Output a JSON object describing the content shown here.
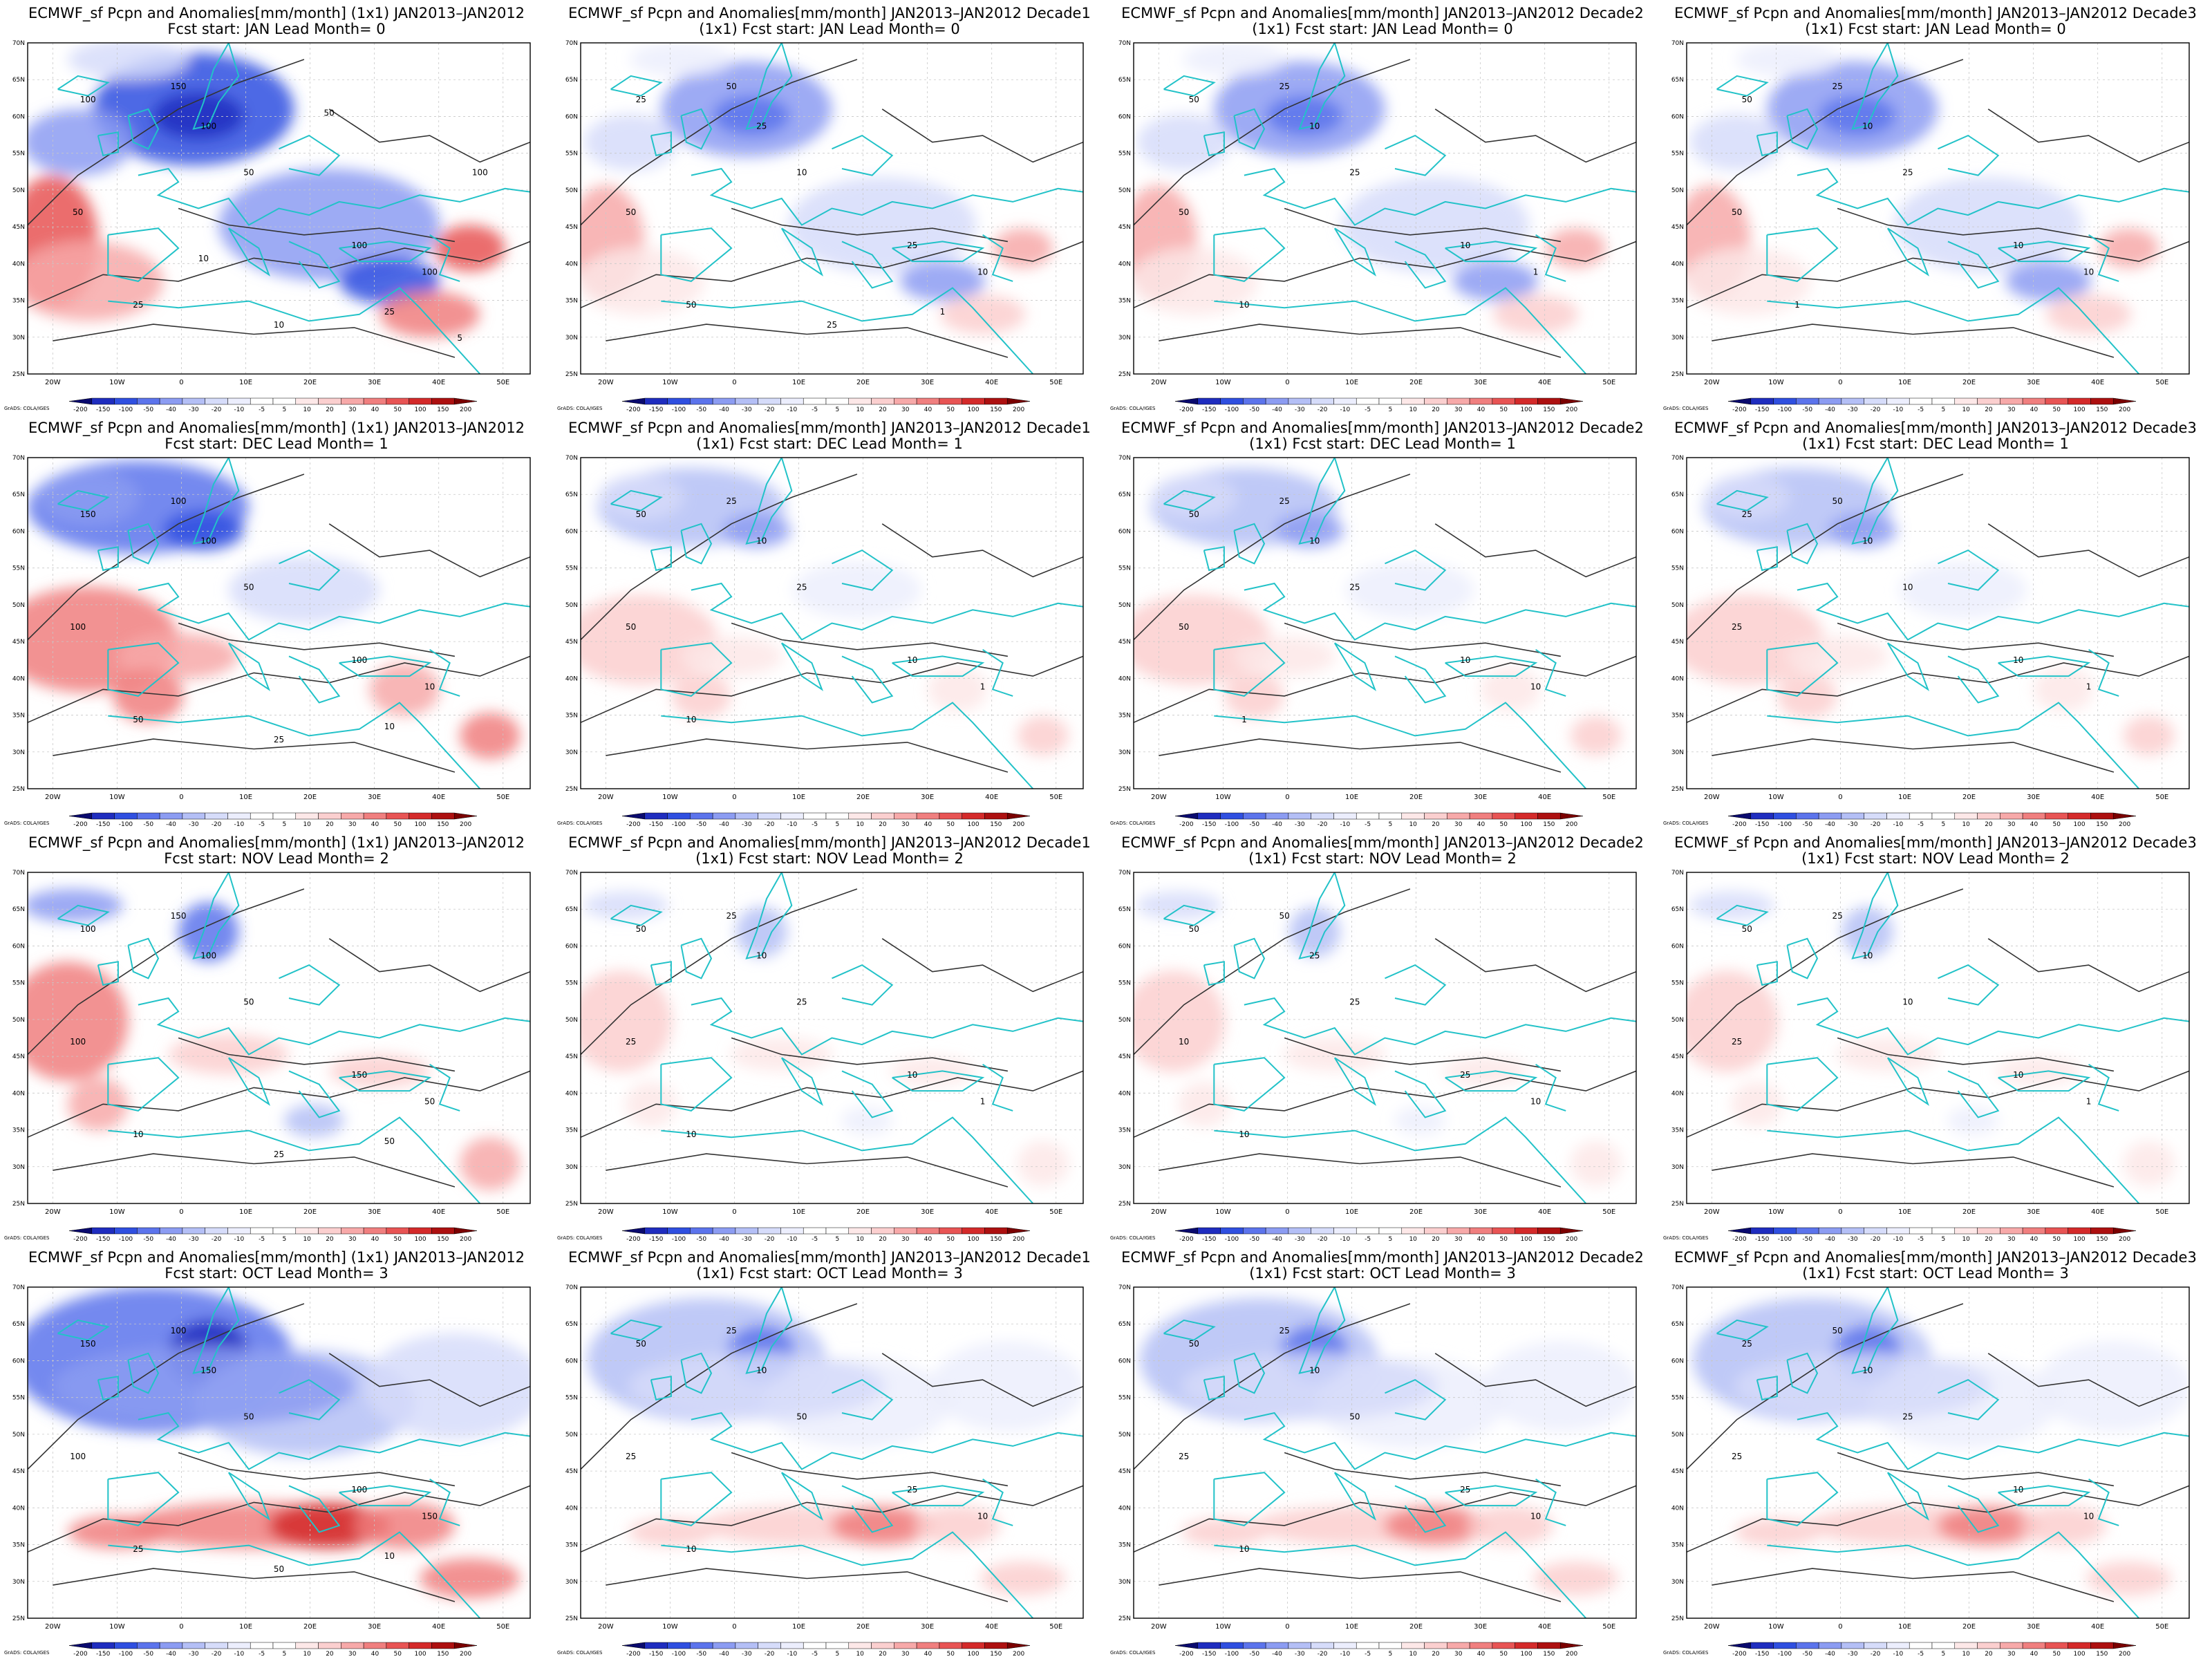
{
  "figure": {
    "colorbar_ticks": [
      "-200",
      "-150",
      "-100",
      "-50",
      "-40",
      "-30",
      "-20",
      "-10",
      "-5",
      "5",
      "10",
      "20",
      "30",
      "40",
      "50",
      "100",
      "150",
      "200"
    ],
    "colorbar_colors": [
      "#0a0a6e",
      "#1f2dbf",
      "#2f4fe0",
      "#5c74ec",
      "#8c9cf2",
      "#b4bff6",
      "#d6dcfa",
      "#eceefd",
      "#ffffff",
      "#ffffff",
      "#fde8e8",
      "#fbcfcf",
      "#f7a9a9",
      "#f07f7f",
      "#e85454",
      "#d42a2a",
      "#ad1010",
      "#7a0000"
    ],
    "lat_labels": [
      "70N",
      "65N",
      "60N",
      "55N",
      "50N",
      "45N",
      "40N",
      "35N",
      "30N",
      "25N"
    ],
    "lon_labels": [
      "20W",
      "10W",
      "0",
      "10E",
      "20E",
      "30E",
      "40E",
      "50E"
    ],
    "credit": "GrADS: COLA/IGES",
    "coast_color": "#22c2c8"
  },
  "panels": [
    {
      "title_line1": "ECMWF_sf Pcpn and Anomalies[mm/month] (1x1) JAN2013–JAN2012",
      "title_line2": "Fcst start: JAN  Lead Month= 0",
      "contour_labels": [
        "100",
        "150",
        "100",
        "50",
        "50",
        "100",
        "100",
        "25",
        "10",
        "25",
        "50",
        "100",
        "10",
        "5"
      ]
    },
    {
      "title_line1": "ECMWF_sf Pcpn and Anomalies[mm/month] JAN2013–JAN2012 Decade1",
      "title_line2": "(1x1) Fcst start: JAN  Lead Month= 0",
      "contour_labels": [
        "25",
        "50",
        "25",
        "50",
        "10",
        "25",
        "10",
        "50",
        "25",
        "1"
      ]
    },
    {
      "title_line1": "ECMWF_sf Pcpn and Anomalies[mm/month] JAN2013–JAN2012 Decade2",
      "title_line2": "(1x1) Fcst start: JAN  Lead Month= 0",
      "contour_labels": [
        "50",
        "25",
        "10",
        "50",
        "25",
        "10",
        "1",
        "10"
      ]
    },
    {
      "title_line1": "ECMWF_sf Pcpn and Anomalies[mm/month] JAN2013–JAN2012 Decade3",
      "title_line2": "(1x1) Fcst start: JAN  Lead Month= 0",
      "contour_labels": [
        "50",
        "25",
        "10",
        "50",
        "25",
        "10",
        "10",
        "1"
      ]
    },
    {
      "title_line1": "ECMWF_sf Pcpn and Anomalies[mm/month] (1x1) JAN2013–JAN2012",
      "title_line2": "Fcst start: DEC  Lead Month= 1",
      "contour_labels": [
        "150",
        "100",
        "100",
        "100",
        "50",
        "100",
        "10",
        "50",
        "25",
        "10"
      ]
    },
    {
      "title_line1": "ECMWF_sf Pcpn and Anomalies[mm/month] JAN2013–JAN2012 Decade1",
      "title_line2": "(1x1) Fcst start: DEC  Lead Month= 1",
      "contour_labels": [
        "50",
        "25",
        "10",
        "50",
        "25",
        "10",
        "1",
        "10"
      ]
    },
    {
      "title_line1": "ECMWF_sf Pcpn and Anomalies[mm/month] JAN2013–JAN2012 Decade2",
      "title_line2": "(1x1) Fcst start: DEC  Lead Month= 1",
      "contour_labels": [
        "50",
        "25",
        "10",
        "50",
        "25",
        "10",
        "10",
        "1"
      ]
    },
    {
      "title_line1": "ECMWF_sf Pcpn and Anomalies[mm/month] JAN2013–JAN2012 Decade3",
      "title_line2": "(1x1) Fcst start: DEC  Lead Month= 1",
      "contour_labels": [
        "25",
        "50",
        "10",
        "25",
        "10",
        "10",
        "1"
      ]
    },
    {
      "title_line1": "ECMWF_sf Pcpn and Anomalies[mm/month] (1x1) JAN2013–JAN2012",
      "title_line2": "Fcst start: NOV  Lead Month= 2",
      "contour_labels": [
        "100",
        "150",
        "100",
        "100",
        "50",
        "150",
        "50",
        "10",
        "25",
        "50"
      ]
    },
    {
      "title_line1": "ECMWF_sf Pcpn and Anomalies[mm/month] JAN2013–JAN2012 Decade1",
      "title_line2": "(1x1) Fcst start: NOV  Lead Month= 2",
      "contour_labels": [
        "50",
        "25",
        "10",
        "25",
        "25",
        "10",
        "1",
        "10"
      ]
    },
    {
      "title_line1": "ECMWF_sf Pcpn and Anomalies[mm/month] JAN2013–JAN2012 Decade2",
      "title_line2": "(1x1) Fcst start: NOV  Lead Month= 2",
      "contour_labels": [
        "50",
        "50",
        "25",
        "10",
        "25",
        "25",
        "10",
        "10"
      ]
    },
    {
      "title_line1": "ECMWF_sf Pcpn and Anomalies[mm/month] JAN2013–JAN2012 Decade3",
      "title_line2": "(1x1) Fcst start: NOV  Lead Month= 2",
      "contour_labels": [
        "50",
        "25",
        "10",
        "25",
        "10",
        "10",
        "1"
      ]
    },
    {
      "title_line1": "ECMWF_sf Pcpn and Anomalies[mm/month] (1x1) JAN2013–JAN2012",
      "title_line2": "Fcst start: OCT  Lead Month= 3",
      "contour_labels": [
        "150",
        "100",
        "150",
        "100",
        "50",
        "100",
        "150",
        "25",
        "50",
        "10"
      ]
    },
    {
      "title_line1": "ECMWF_sf Pcpn and Anomalies[mm/month] JAN2013–JAN2012 Decade1",
      "title_line2": "(1x1) Fcst start: OCT  Lead Month= 3",
      "contour_labels": [
        "50",
        "25",
        "10",
        "25",
        "50",
        "25",
        "10",
        "10"
      ]
    },
    {
      "title_line1": "ECMWF_sf Pcpn and Anomalies[mm/month] JAN2013–JAN2012 Decade2",
      "title_line2": "(1x1) Fcst start: OCT  Lead Month= 3",
      "contour_labels": [
        "50",
        "25",
        "10",
        "25",
        "50",
        "25",
        "10",
        "10"
      ]
    },
    {
      "title_line1": "ECMWF_sf Pcpn and Anomalies[mm/month] JAN2013–JAN2012 Decade3",
      "title_line2": "(1x1) Fcst start: OCT  Lead Month= 3",
      "contour_labels": [
        "25",
        "50",
        "10",
        "25",
        "25",
        "10",
        "10"
      ]
    }
  ]
}
